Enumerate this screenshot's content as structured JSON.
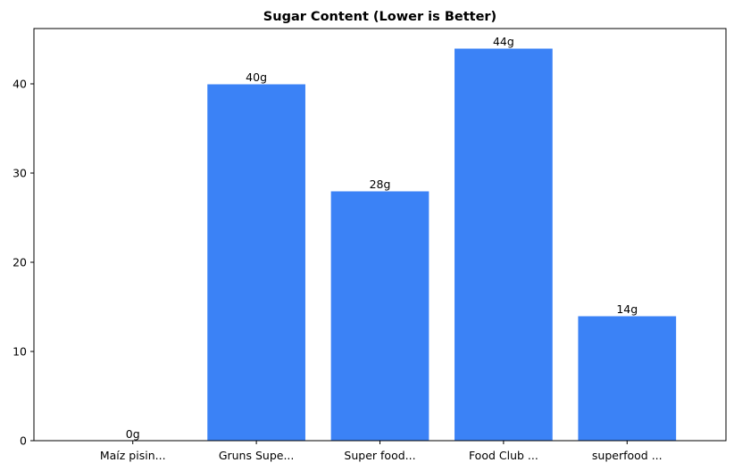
{
  "chart_data": {
    "type": "bar",
    "title": "Sugar Content (Lower is Better)",
    "xlabel": "",
    "ylabel": "",
    "categories": [
      "Maíz pisin...",
      "Gruns Supe...",
      "Super food...",
      "Food Club ...",
      "superfood ..."
    ],
    "values": [
      0,
      40,
      28,
      44,
      14
    ],
    "data_labels": [
      "0g",
      "40g",
      "28g",
      "44g",
      "14g"
    ],
    "ylim": [
      0,
      46.2
    ],
    "yticks": [
      0,
      10,
      20,
      30,
      40
    ],
    "grid": false,
    "legend": "none",
    "colors": {
      "bar": "#3b82f6",
      "bar_edge": "#ffffff",
      "axis": "#000000",
      "text": "#000000",
      "background": "#ffffff"
    }
  }
}
